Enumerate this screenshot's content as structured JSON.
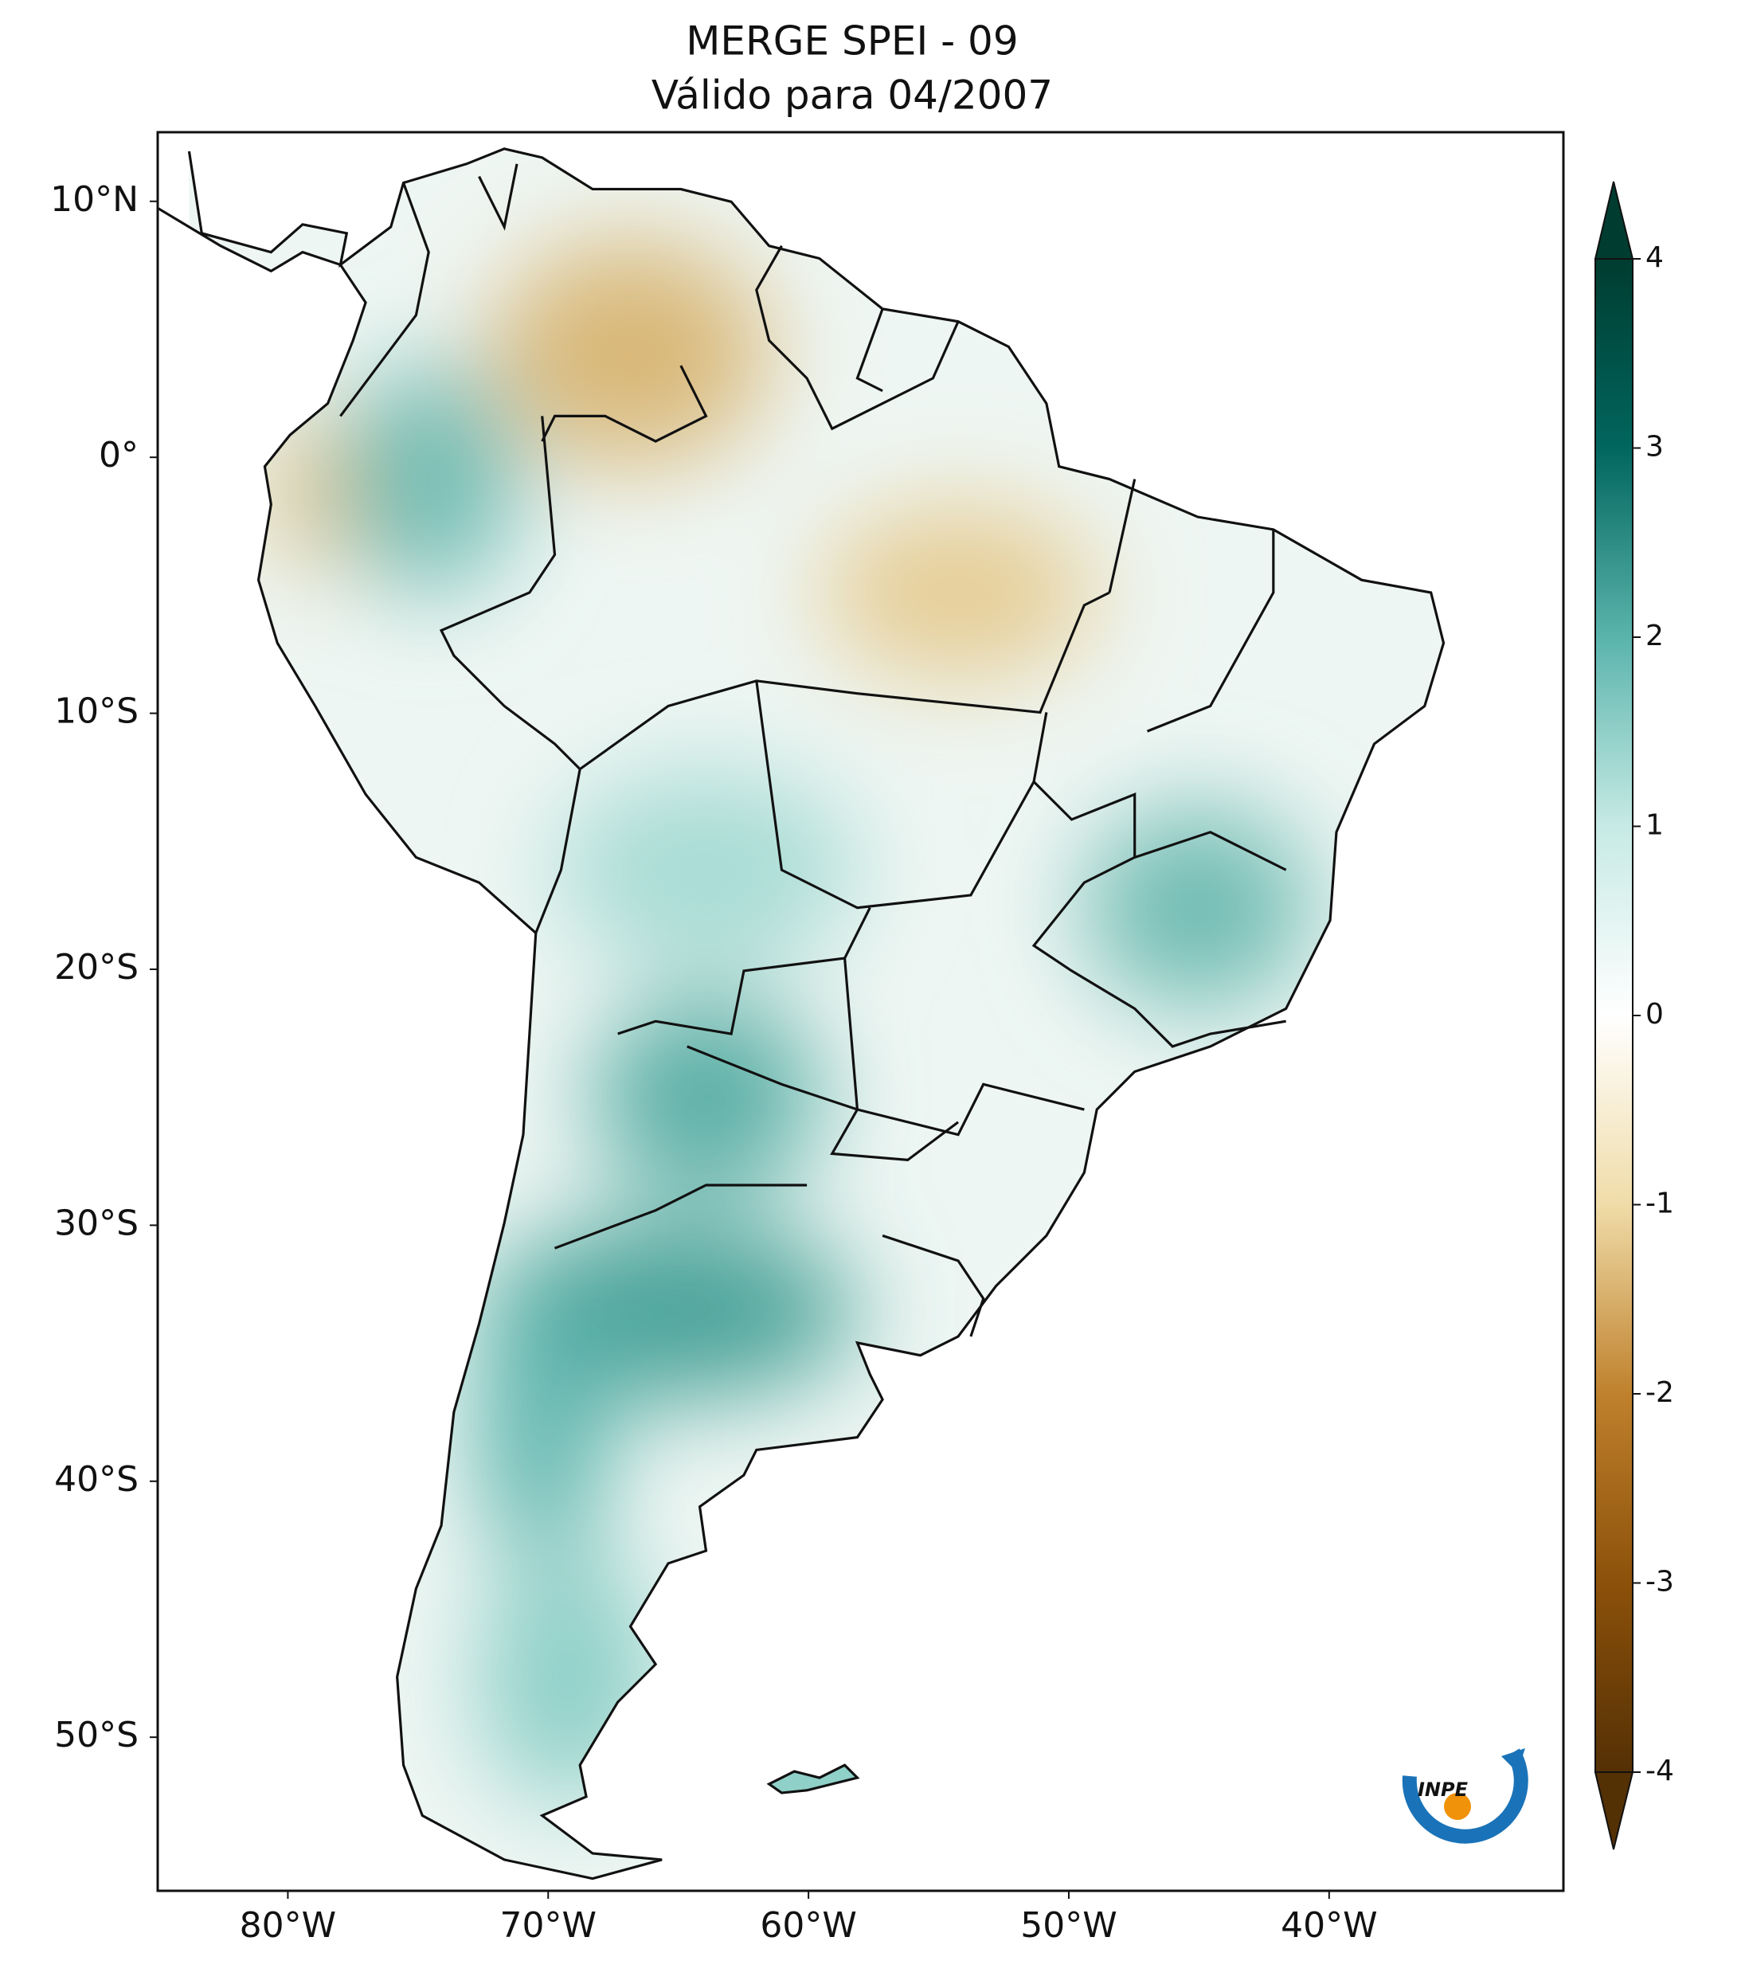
{
  "chart_data": {
    "type": "map",
    "title": "MERGE   SPEI - 09",
    "subtitle": "Válido para 04/2007",
    "xlim": [
      -85,
      -31
    ],
    "ylim": [
      -56,
      12.7
    ],
    "xticks": [
      {
        "value": -80,
        "label": "80°W"
      },
      {
        "value": -70,
        "label": "70°W"
      },
      {
        "value": -60,
        "label": "60°W"
      },
      {
        "value": -50,
        "label": "50°W"
      },
      {
        "value": -40,
        "label": "40°W"
      }
    ],
    "yticks": [
      {
        "value": 10,
        "label": "10°N"
      },
      {
        "value": 0,
        "label": "0°"
      },
      {
        "value": -10,
        "label": "10°S"
      },
      {
        "value": -20,
        "label": "20°S"
      },
      {
        "value": -30,
        "label": "30°S"
      },
      {
        "value": -40,
        "label": "40°S"
      },
      {
        "value": -50,
        "label": "50°S"
      }
    ],
    "clim": [
      -4,
      4
    ],
    "cticks": [
      -4,
      -3,
      -2,
      -1,
      0,
      1,
      2,
      3,
      4
    ],
    "logo": "INPE"
  }
}
